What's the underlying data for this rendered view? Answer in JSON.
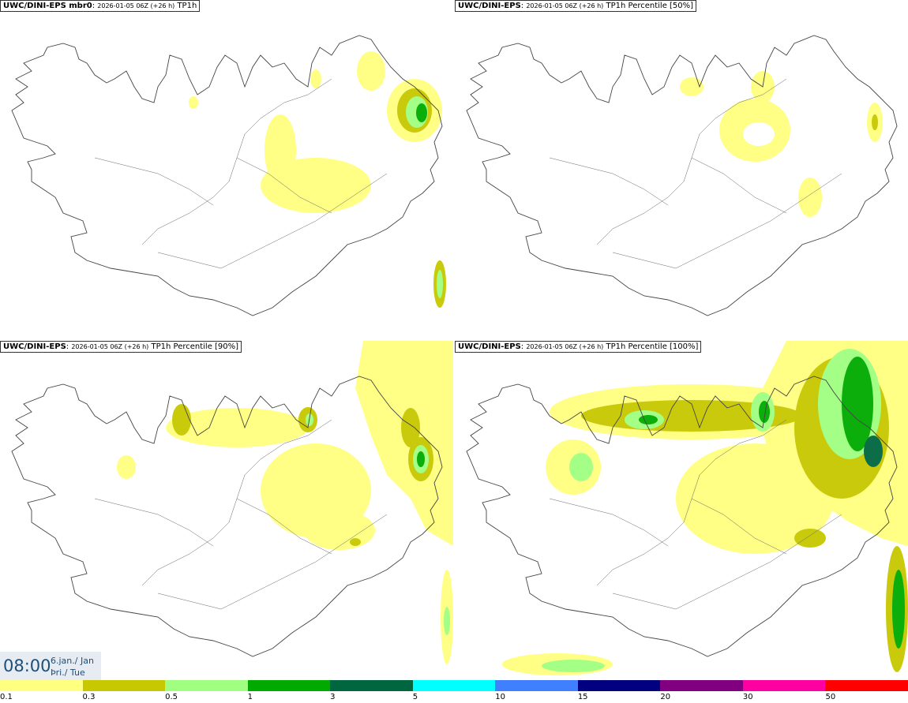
{
  "panels": [
    {
      "model": "UWC/DINI-EPS mbr0",
      "run": "2026-01-05 06Z (+26 h)",
      "field": "TP1h"
    },
    {
      "model": "UWC/DINI-EPS",
      "run": "2026-01-05 06Z (+26 h)",
      "field": "TP1h Percentile [50%]"
    },
    {
      "model": "UWC/DINI-EPS",
      "run": "2026-01-05 06Z (+26 h)",
      "field": "TP1h Percentile [90%]"
    },
    {
      "model": "UWC/DINI-EPS",
      "run": "2026-01-05 06Z (+26 h)",
      "field": "TP1h Percentile [100%]"
    }
  ],
  "time": {
    "clock": "08:00",
    "date_line1": "6.jan./ Jan",
    "date_line2": "Þri./ Tue"
  },
  "legend": {
    "labels": [
      "0.1",
      "0.3",
      "0.5",
      "1",
      "3",
      "5",
      "10",
      "15",
      "20",
      "30",
      "50"
    ],
    "colors": [
      "#ffff80",
      "#c8c800",
      "#a0ff80",
      "#00aa00",
      "#006640",
      "#00ffff",
      "#4080ff",
      "#000080",
      "#800080",
      "#ff00a0",
      "#ff0000"
    ]
  }
}
